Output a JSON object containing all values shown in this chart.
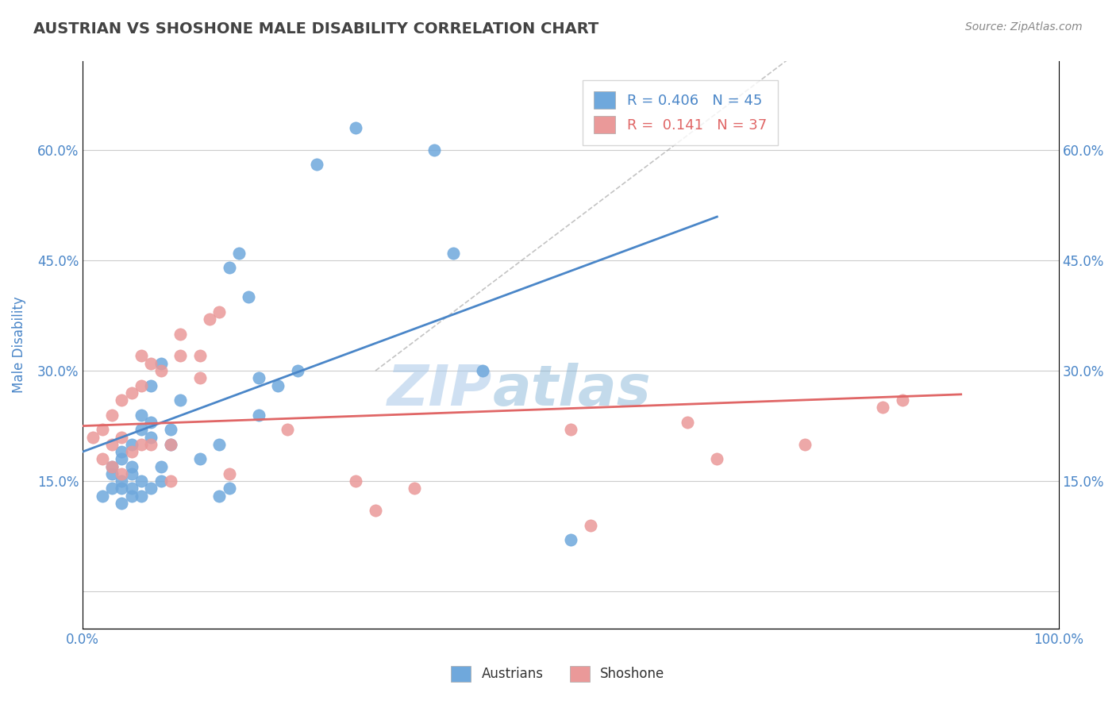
{
  "title": "AUSTRIAN VS SHOSHONE MALE DISABILITY CORRELATION CHART",
  "source": "Source: ZipAtlas.com",
  "ylabel": "Male Disability",
  "xlim": [
    0,
    1.0
  ],
  "ylim": [
    -0.05,
    0.72
  ],
  "xticks": [
    0.0,
    0.1,
    0.2,
    0.3,
    0.4,
    0.5,
    0.6,
    0.7,
    0.8,
    0.9,
    1.0
  ],
  "xticklabels": [
    "0.0%",
    "",
    "",
    "",
    "",
    "",
    "",
    "",
    "",
    "",
    "100.0%"
  ],
  "yticks": [
    0.0,
    0.15,
    0.3,
    0.45,
    0.6
  ],
  "yticklabels": [
    "",
    "15.0%",
    "30.0%",
    "45.0%",
    "60.0%"
  ],
  "legend_r1": "R = 0.406   N = 45",
  "legend_r2": "R =  0.141   N = 37",
  "austrians_color": "#6fa8dc",
  "shoshone_color": "#ea9999",
  "trend_austrians_color": "#4a86c8",
  "trend_shoshone_color": "#e06666",
  "diagonal_color": "#aaaaaa",
  "watermark_zip": "ZIP",
  "watermark_atlas": "atlas",
  "austrians_x": [
    0.02,
    0.03,
    0.03,
    0.03,
    0.04,
    0.04,
    0.04,
    0.04,
    0.04,
    0.05,
    0.05,
    0.05,
    0.05,
    0.05,
    0.06,
    0.06,
    0.06,
    0.06,
    0.07,
    0.07,
    0.07,
    0.07,
    0.08,
    0.08,
    0.08,
    0.09,
    0.09,
    0.1,
    0.12,
    0.14,
    0.14,
    0.15,
    0.15,
    0.16,
    0.17,
    0.18,
    0.18,
    0.2,
    0.22,
    0.24,
    0.28,
    0.36,
    0.38,
    0.41,
    0.5
  ],
  "austrians_y": [
    0.13,
    0.14,
    0.16,
    0.17,
    0.12,
    0.14,
    0.15,
    0.18,
    0.19,
    0.13,
    0.14,
    0.16,
    0.17,
    0.2,
    0.13,
    0.15,
    0.22,
    0.24,
    0.14,
    0.21,
    0.23,
    0.28,
    0.15,
    0.17,
    0.31,
    0.2,
    0.22,
    0.26,
    0.18,
    0.13,
    0.2,
    0.14,
    0.44,
    0.46,
    0.4,
    0.24,
    0.29,
    0.28,
    0.3,
    0.58,
    0.63,
    0.6,
    0.46,
    0.3,
    0.07
  ],
  "shoshone_x": [
    0.01,
    0.02,
    0.02,
    0.03,
    0.03,
    0.03,
    0.04,
    0.04,
    0.04,
    0.05,
    0.05,
    0.06,
    0.06,
    0.06,
    0.07,
    0.07,
    0.08,
    0.09,
    0.09,
    0.1,
    0.1,
    0.12,
    0.12,
    0.13,
    0.14,
    0.15,
    0.21,
    0.28,
    0.3,
    0.34,
    0.5,
    0.52,
    0.62,
    0.65,
    0.74,
    0.82,
    0.84
  ],
  "shoshone_y": [
    0.21,
    0.18,
    0.22,
    0.17,
    0.2,
    0.24,
    0.16,
    0.21,
    0.26,
    0.19,
    0.27,
    0.2,
    0.28,
    0.32,
    0.2,
    0.31,
    0.3,
    0.15,
    0.2,
    0.32,
    0.35,
    0.29,
    0.32,
    0.37,
    0.38,
    0.16,
    0.22,
    0.15,
    0.11,
    0.14,
    0.22,
    0.09,
    0.23,
    0.18,
    0.2,
    0.25,
    0.26
  ],
  "background_color": "#ffffff",
  "title_color": "#434343",
  "axis_label_color": "#4a86c8",
  "tick_label_color": "#4a86c8"
}
